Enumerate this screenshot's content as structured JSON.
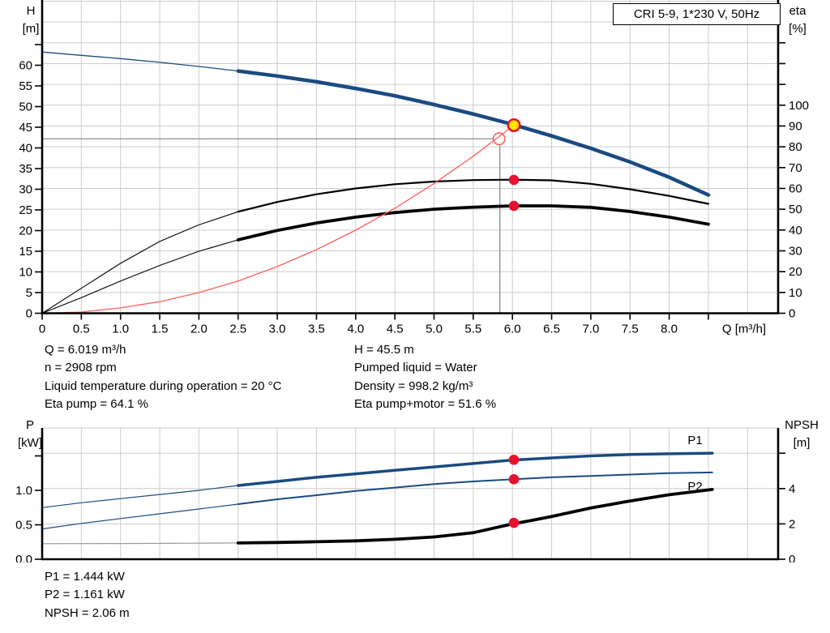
{
  "title_box": {
    "label": "CRI 5-9, 1*230 V, 50Hz"
  },
  "colors": {
    "curve_blue": "#1a4a80",
    "curve_black": "#000000",
    "system_red": "#ff6059",
    "marker_red": "#e8112d",
    "operating_yellow": "#ffe400",
    "crosshair_gray": "#8c8c8c",
    "thin_gray": "#999999",
    "grid": "#cccccc"
  },
  "info_mid": {
    "left": [
      "Q = 6.019 m³/h",
      "n = 2908 rpm",
      "Liquid temperature during operation = 20 °C",
      "Eta pump = 64.1 %"
    ],
    "right": [
      "H = 45.5 m",
      "Pumped liquid = Water",
      "Density = 998.2 kg/m³",
      "Eta pump+motor = 51.6 %"
    ]
  },
  "info_bottom": [
    "P1 = 1.444 kW",
    "P2 = 1.161 kW",
    "NPSH = 2.06 m"
  ],
  "chart_data": [
    {
      "type": "line",
      "name": "qh-and-efficiency-chart",
      "x_axis": {
        "label": "Q [m³/h]",
        "min": 0,
        "max": 9.39,
        "grid_step": 0.5,
        "tick_step": 0.5,
        "tick_labels": [
          "0",
          "0.5",
          "1.0",
          "1.5",
          "2.0",
          "2.5",
          "3.0",
          "3.5",
          "4.0",
          "4.5",
          "5.0",
          "5.5",
          "6.0",
          "6.5",
          "7.0",
          "7.5",
          "8.0"
        ],
        "extra_ticks": [
          8.5
        ]
      },
      "left_axis": {
        "title": "H",
        "unit": "[m]",
        "min": 0,
        "max": 68,
        "tick_step": 5,
        "tick_labels": [
          "0",
          "5",
          "10",
          "15",
          "20",
          "25",
          "30",
          "35",
          "40",
          "45",
          "50",
          "55",
          "60"
        ],
        "extra_ticks": [
          65
        ]
      },
      "right_axis": {
        "title": "eta",
        "unit": "[%]",
        "min": 0,
        "max": 150,
        "tick_step": 10,
        "tick_labels": [
          "0",
          "10",
          "20",
          "30",
          "40",
          "50",
          "60",
          "70",
          "80",
          "90",
          "100"
        ],
        "extra_ticks": [
          110,
          120,
          130
        ],
        "grid_values": [
          10,
          20,
          30,
          40,
          50,
          60,
          70,
          80,
          90,
          100,
          110,
          120,
          130,
          140,
          150
        ]
      },
      "series": [
        {
          "name": "H pump curve",
          "axis": "H",
          "color": "#1a4a80",
          "width": 4.5,
          "thin_width": 1.3,
          "split": 2.5,
          "points": [
            [
              0,
              63.2
            ],
            [
              0.5,
              62.4
            ],
            [
              1,
              61.6
            ],
            [
              1.5,
              60.7
            ],
            [
              2,
              59.7
            ],
            [
              2.5,
              58.6
            ],
            [
              3,
              57.4
            ],
            [
              3.5,
              56.0
            ],
            [
              4,
              54.4
            ],
            [
              4.5,
              52.6
            ],
            [
              5,
              50.5
            ],
            [
              5.5,
              48.2
            ],
            [
              6,
              45.7
            ],
            [
              6.5,
              42.9
            ],
            [
              7,
              39.9
            ],
            [
              7.5,
              36.6
            ],
            [
              8,
              32.9
            ],
            [
              8.5,
              28.6
            ]
          ]
        },
        {
          "name": "eta pump",
          "axis": "eta",
          "color": "#000000",
          "width": 2.2,
          "thin_width": 1.1,
          "split": 2.5,
          "points": [
            [
              0,
              0
            ],
            [
              0.5,
              12
            ],
            [
              1,
              24
            ],
            [
              1.5,
              34.5
            ],
            [
              2,
              42.5
            ],
            [
              2.5,
              48.8
            ],
            [
              3,
              53.5
            ],
            [
              3.5,
              57.2
            ],
            [
              4,
              60.0
            ],
            [
              4.5,
              62.0
            ],
            [
              5,
              63.3
            ],
            [
              5.5,
              64.0
            ],
            [
              6,
              64.2
            ],
            [
              6.5,
              63.9
            ],
            [
              7,
              62.2
            ],
            [
              7.5,
              59.6
            ],
            [
              8,
              56.4
            ],
            [
              8.5,
              52.6
            ]
          ]
        },
        {
          "name": "eta pump+motor",
          "axis": "eta",
          "color": "#000000",
          "width": 3.8,
          "thin_width": 1.1,
          "split": 2.5,
          "points": [
            [
              0,
              0
            ],
            [
              0.5,
              7.5
            ],
            [
              1,
              15.5
            ],
            [
              1.5,
              23.0
            ],
            [
              2,
              29.8
            ],
            [
              2.5,
              35.3
            ],
            [
              3,
              39.8
            ],
            [
              3.5,
              43.4
            ],
            [
              4,
              46.2
            ],
            [
              4.5,
              48.4
            ],
            [
              5,
              50.0
            ],
            [
              5.5,
              51.0
            ],
            [
              6,
              51.6
            ],
            [
              6.5,
              51.6
            ],
            [
              7,
              50.9
            ],
            [
              7.5,
              48.9
            ],
            [
              8,
              46.2
            ],
            [
              8.5,
              42.8
            ]
          ]
        },
        {
          "name": "system curve",
          "axis": "H",
          "color": "#ff6059",
          "width": 1.3,
          "thin_width": 1.3,
          "split": null,
          "points": [
            [
              0,
              0
            ],
            [
              0.5,
              0.3
            ],
            [
              1,
              1.3
            ],
            [
              1.5,
              2.8
            ],
            [
              2,
              5.0
            ],
            [
              2.5,
              7.8
            ],
            [
              3,
              11.3
            ],
            [
              3.5,
              15.4
            ],
            [
              4,
              20.1
            ],
            [
              4.5,
              25.4
            ],
            [
              5,
              31.4
            ],
            [
              5.5,
              38.0
            ],
            [
              6,
              45.2
            ],
            [
              6.019,
              45.5
            ]
          ]
        }
      ],
      "crosshair": {
        "q": 5.84,
        "value": 42.2,
        "axis": "H"
      },
      "markers": [
        {
          "kind": "open-circle",
          "name": "rated-duty-marker",
          "axis": "H",
          "q": 5.83,
          "value": 42.2,
          "color": "#ff6059"
        },
        {
          "kind": "dot",
          "name": "eta-pump-dot",
          "axis": "eta",
          "q": 6.019,
          "value": 64.1,
          "color": "#e8112d"
        },
        {
          "kind": "dot",
          "name": "eta-pump-motor-dot",
          "axis": "eta",
          "q": 6.019,
          "value": 51.6,
          "color": "#e8112d"
        },
        {
          "kind": "operating-point",
          "name": "operating-point-marker",
          "axis": "H",
          "q": 6.019,
          "value": 45.5,
          "fill": "#ffe400",
          "color": "#e8112d"
        }
      ]
    },
    {
      "type": "line",
      "name": "power-and-npsh-chart",
      "x_axis": {
        "min": 0,
        "max": 9.39,
        "grid_step": 0.5,
        "tick_labels": [],
        "extra_ticks": []
      },
      "left_axis": {
        "title": "P",
        "unit": "[kW]",
        "min": 0,
        "max": 1.9,
        "tick_step": 0.5,
        "tick_labels": [
          "0.0",
          "0.5",
          "1.0"
        ],
        "extra_ticks": [
          1.5
        ]
      },
      "right_axis": {
        "title": "NPSH",
        "unit": "[m]",
        "min": 0,
        "max": 7.4,
        "tick_step": 2,
        "tick_labels": [
          "0",
          "2",
          "4"
        ],
        "extra_ticks": [
          6
        ],
        "grid_values": [
          2,
          4,
          6
        ]
      },
      "series": [
        {
          "name": "P1",
          "label": "P1",
          "axis": "P",
          "color": "#1a4a80",
          "width": 3.5,
          "thin_width": 1.2,
          "split": 2.5,
          "label_at": {
            "q": 8.33,
            "value": 1.54,
            "dy": -11
          },
          "points": [
            [
              0,
              0.75
            ],
            [
              0.5,
              0.82
            ],
            [
              1,
              0.88
            ],
            [
              1.5,
              0.94
            ],
            [
              2,
              1.0
            ],
            [
              2.5,
              1.07
            ],
            [
              3,
              1.13
            ],
            [
              3.5,
              1.19
            ],
            [
              4,
              1.24
            ],
            [
              4.5,
              1.29
            ],
            [
              5,
              1.34
            ],
            [
              5.5,
              1.39
            ],
            [
              6,
              1.44
            ],
            [
              6.5,
              1.47
            ],
            [
              7,
              1.5
            ],
            [
              7.5,
              1.52
            ],
            [
              8,
              1.53
            ],
            [
              8.55,
              1.54
            ]
          ]
        },
        {
          "name": "P2",
          "label": "P2",
          "axis": "P",
          "color": "#1a4a80",
          "width": 2.0,
          "thin_width": 1.2,
          "split": 2.5,
          "label_at": {
            "q": 8.33,
            "value": 1.26,
            "dy": 22
          },
          "points": [
            [
              0,
              0.44
            ],
            [
              0.5,
              0.52
            ],
            [
              1,
              0.59
            ],
            [
              1.5,
              0.66
            ],
            [
              2,
              0.73
            ],
            [
              2.5,
              0.8
            ],
            [
              3,
              0.87
            ],
            [
              3.5,
              0.93
            ],
            [
              4,
              0.99
            ],
            [
              4.5,
              1.04
            ],
            [
              5,
              1.09
            ],
            [
              5.5,
              1.13
            ],
            [
              6,
              1.16
            ],
            [
              6.5,
              1.19
            ],
            [
              7,
              1.21
            ],
            [
              7.5,
              1.23
            ],
            [
              8,
              1.25
            ],
            [
              8.55,
              1.26
            ]
          ]
        },
        {
          "name": "NPSH",
          "axis": "NPSH",
          "color": "#000000",
          "width": 3.8,
          "thin_width": 1.2,
          "thin_color": "#999999",
          "split": 2.5,
          "points": [
            [
              0,
              0.88
            ],
            [
              1,
              0.89
            ],
            [
              2,
              0.91
            ],
            [
              2.5,
              0.92
            ],
            [
              3,
              0.95
            ],
            [
              3.5,
              0.99
            ],
            [
              4,
              1.04
            ],
            [
              4.5,
              1.13
            ],
            [
              5,
              1.26
            ],
            [
              5.5,
              1.5
            ],
            [
              6,
              2.0
            ],
            [
              6.25,
              2.2
            ],
            [
              6.5,
              2.42
            ],
            [
              7,
              2.9
            ],
            [
              7.5,
              3.3
            ],
            [
              8,
              3.65
            ],
            [
              8.55,
              3.95
            ]
          ]
        }
      ],
      "markers": [
        {
          "kind": "dot",
          "name": "p1-duty-dot",
          "axis": "P",
          "q": 6.019,
          "value": 1.444,
          "color": "#e8112d"
        },
        {
          "kind": "dot",
          "name": "p2-duty-dot",
          "axis": "P",
          "q": 6.019,
          "value": 1.161,
          "color": "#e8112d"
        },
        {
          "kind": "dot",
          "name": "npsh-duty-dot",
          "axis": "NPSH",
          "q": 6.019,
          "value": 2.06,
          "color": "#e8112d"
        }
      ]
    }
  ]
}
